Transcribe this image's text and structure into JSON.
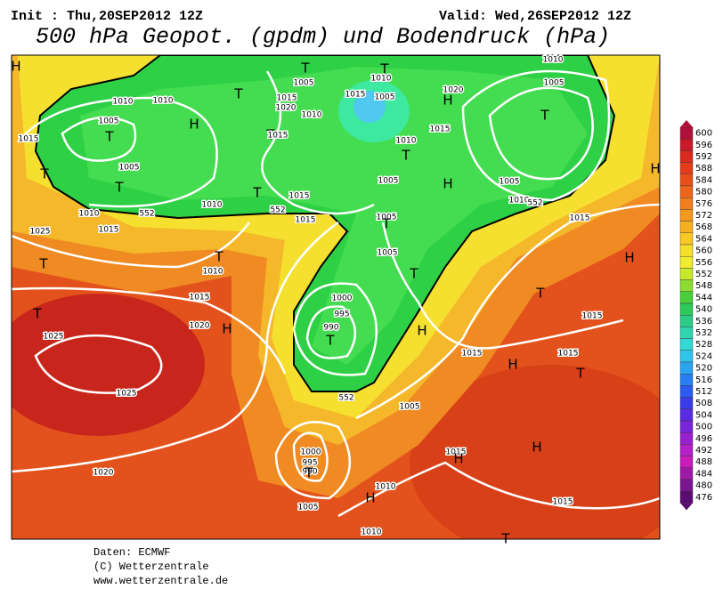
{
  "header": {
    "init": "Init : Thu,20SEP2012 12Z",
    "valid": "Valid: Wed,26SEP2012 12Z",
    "title": "500 hPa Geopot. (gpdm) und Bodendruck (hPa)"
  },
  "colorbar": {
    "labels": [
      600,
      596,
      592,
      588,
      584,
      580,
      576,
      572,
      568,
      564,
      560,
      556,
      552,
      548,
      544,
      540,
      536,
      532,
      528,
      524,
      520,
      516,
      512,
      508,
      504,
      500,
      496,
      492,
      488,
      484,
      480,
      476
    ]
  },
  "map": {
    "labels": [
      "H",
      "T",
      "T",
      "1010",
      "1005",
      "1015",
      "1005",
      "T",
      "1015",
      "1020",
      "1010",
      "1010",
      "1010",
      "1005",
      "T",
      "H",
      "1015",
      "T",
      "1005",
      "T",
      "T",
      "1015",
      "T",
      "1015",
      "1010",
      "1010",
      "1015",
      "1010",
      "T",
      "1005",
      "H",
      "1015",
      "1005",
      "T",
      "1005",
      "T",
      "1000",
      "995",
      "990",
      "T",
      "H",
      "1020",
      "H",
      "1015",
      "1010",
      "1005",
      "T",
      "1005",
      "1010",
      "1015",
      "H",
      "1025",
      "T",
      "1010",
      "1015",
      "T",
      "1020",
      "H",
      "1025",
      "T",
      "1025",
      "1005",
      "1015",
      "H",
      "T",
      "1015",
      "H",
      "T",
      "1015",
      "H",
      "1015",
      "H",
      "1000",
      "995",
      "990",
      "T",
      "1010",
      "H",
      "1005",
      "1015",
      "1020",
      "1010",
      "T",
      "552",
      "552",
      "552",
      "552"
    ]
  },
  "footer": {
    "lines": [
      "Daten: ECMWF",
      "(C) Wetterzentrale",
      "www.wetterzentrale.de"
    ]
  }
}
